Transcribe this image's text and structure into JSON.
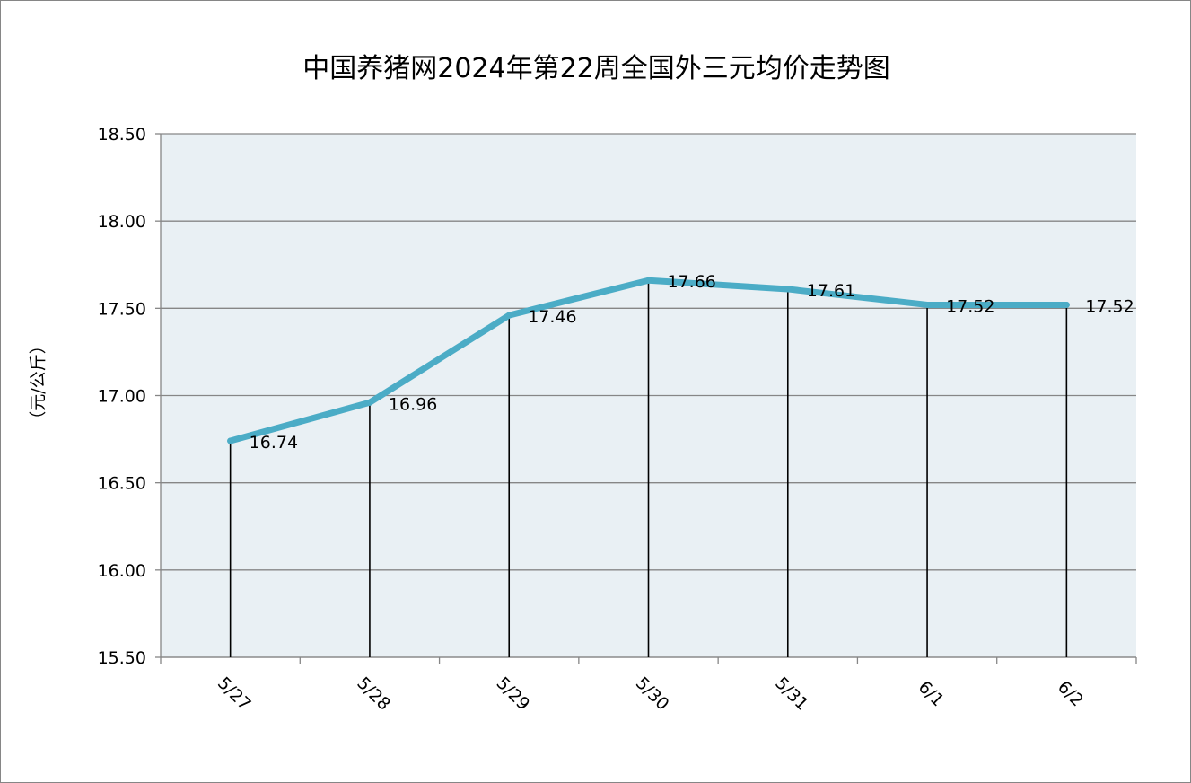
{
  "chart_data": {
    "type": "line",
    "title": "中国养猪网2024年第22周全国外三元均价走势图",
    "ylabel": "（元/公斤）",
    "xlabel": "",
    "categories": [
      "5/27",
      "5/28",
      "5/29",
      "5/30",
      "5/31",
      "6/1",
      "6/2"
    ],
    "values": [
      16.74,
      16.96,
      17.46,
      17.66,
      17.61,
      17.52,
      17.52
    ],
    "data_labels": [
      "16.74",
      "16.96",
      "17.46",
      "17.66",
      "17.61",
      "17.52",
      "17.52"
    ],
    "yticks": [
      "15.50",
      "16.00",
      "16.50",
      "17.00",
      "17.50",
      "18.00",
      "18.50"
    ],
    "ylim": [
      15.5,
      18.5
    ],
    "grid": true,
    "drop_lines": true,
    "legend": "none",
    "colors": {
      "line": "#4bacc6",
      "plot_background": "#e9f0f4",
      "gridline": "#868686",
      "drop_line": "#000000"
    }
  }
}
